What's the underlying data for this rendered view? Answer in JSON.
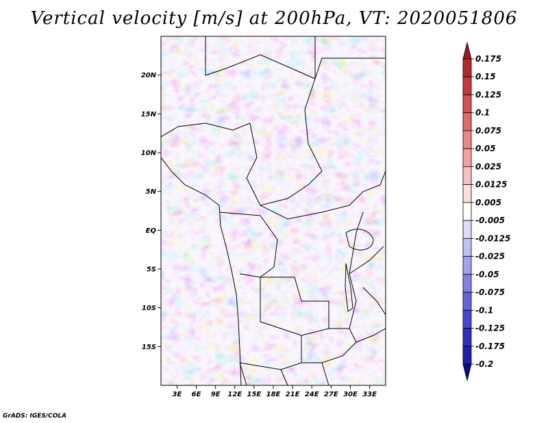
{
  "chart_data": {
    "type": "heatmap",
    "title": "Vertical velocity [m/s] at 200hPa, VT: 2020051806",
    "x_ticks": [
      "3E",
      "6E",
      "9E",
      "12E",
      "15E",
      "18E",
      "21E",
      "24E",
      "27E",
      "30E",
      "33E"
    ],
    "x_tick_values": [
      3,
      6,
      9,
      12,
      15,
      18,
      21,
      24,
      27,
      30,
      33
    ],
    "y_ticks": [
      "20N",
      "15N",
      "10N",
      "5N",
      "EQ",
      "5S",
      "10S",
      "15S"
    ],
    "y_tick_values": [
      20,
      15,
      10,
      5,
      0,
      -5,
      -10,
      -15
    ],
    "xlim": [
      0.5,
      35.5
    ],
    "ylim": [
      -20,
      25
    ],
    "units": "m/s",
    "colorbar": {
      "levels": [
        "0.175",
        "0.15",
        "0.125",
        "0.1",
        "0.075",
        "0.05",
        "0.025",
        "0.0125",
        "0.005",
        "-0.005",
        "-0.0125",
        "-0.025",
        "-0.05",
        "-0.075",
        "-0.1",
        "-0.125",
        "-0.175",
        "-0.2"
      ],
      "colors": [
        "#a01a1a",
        "#b42828",
        "#c83a3a",
        "#d95050",
        "#e46a6a",
        "#ec8585",
        "#f2a2a2",
        "#f7c2c2",
        "#fbdede",
        "#ffffff",
        "#dcdcfa",
        "#c0c0f4",
        "#a2a2ee",
        "#8282e6",
        "#6464dc",
        "#4646d0",
        "#2e2ec0",
        "#1e1eac",
        "#0c0c80"
      ]
    }
  },
  "credit": "GrADS: IGES/COLA"
}
